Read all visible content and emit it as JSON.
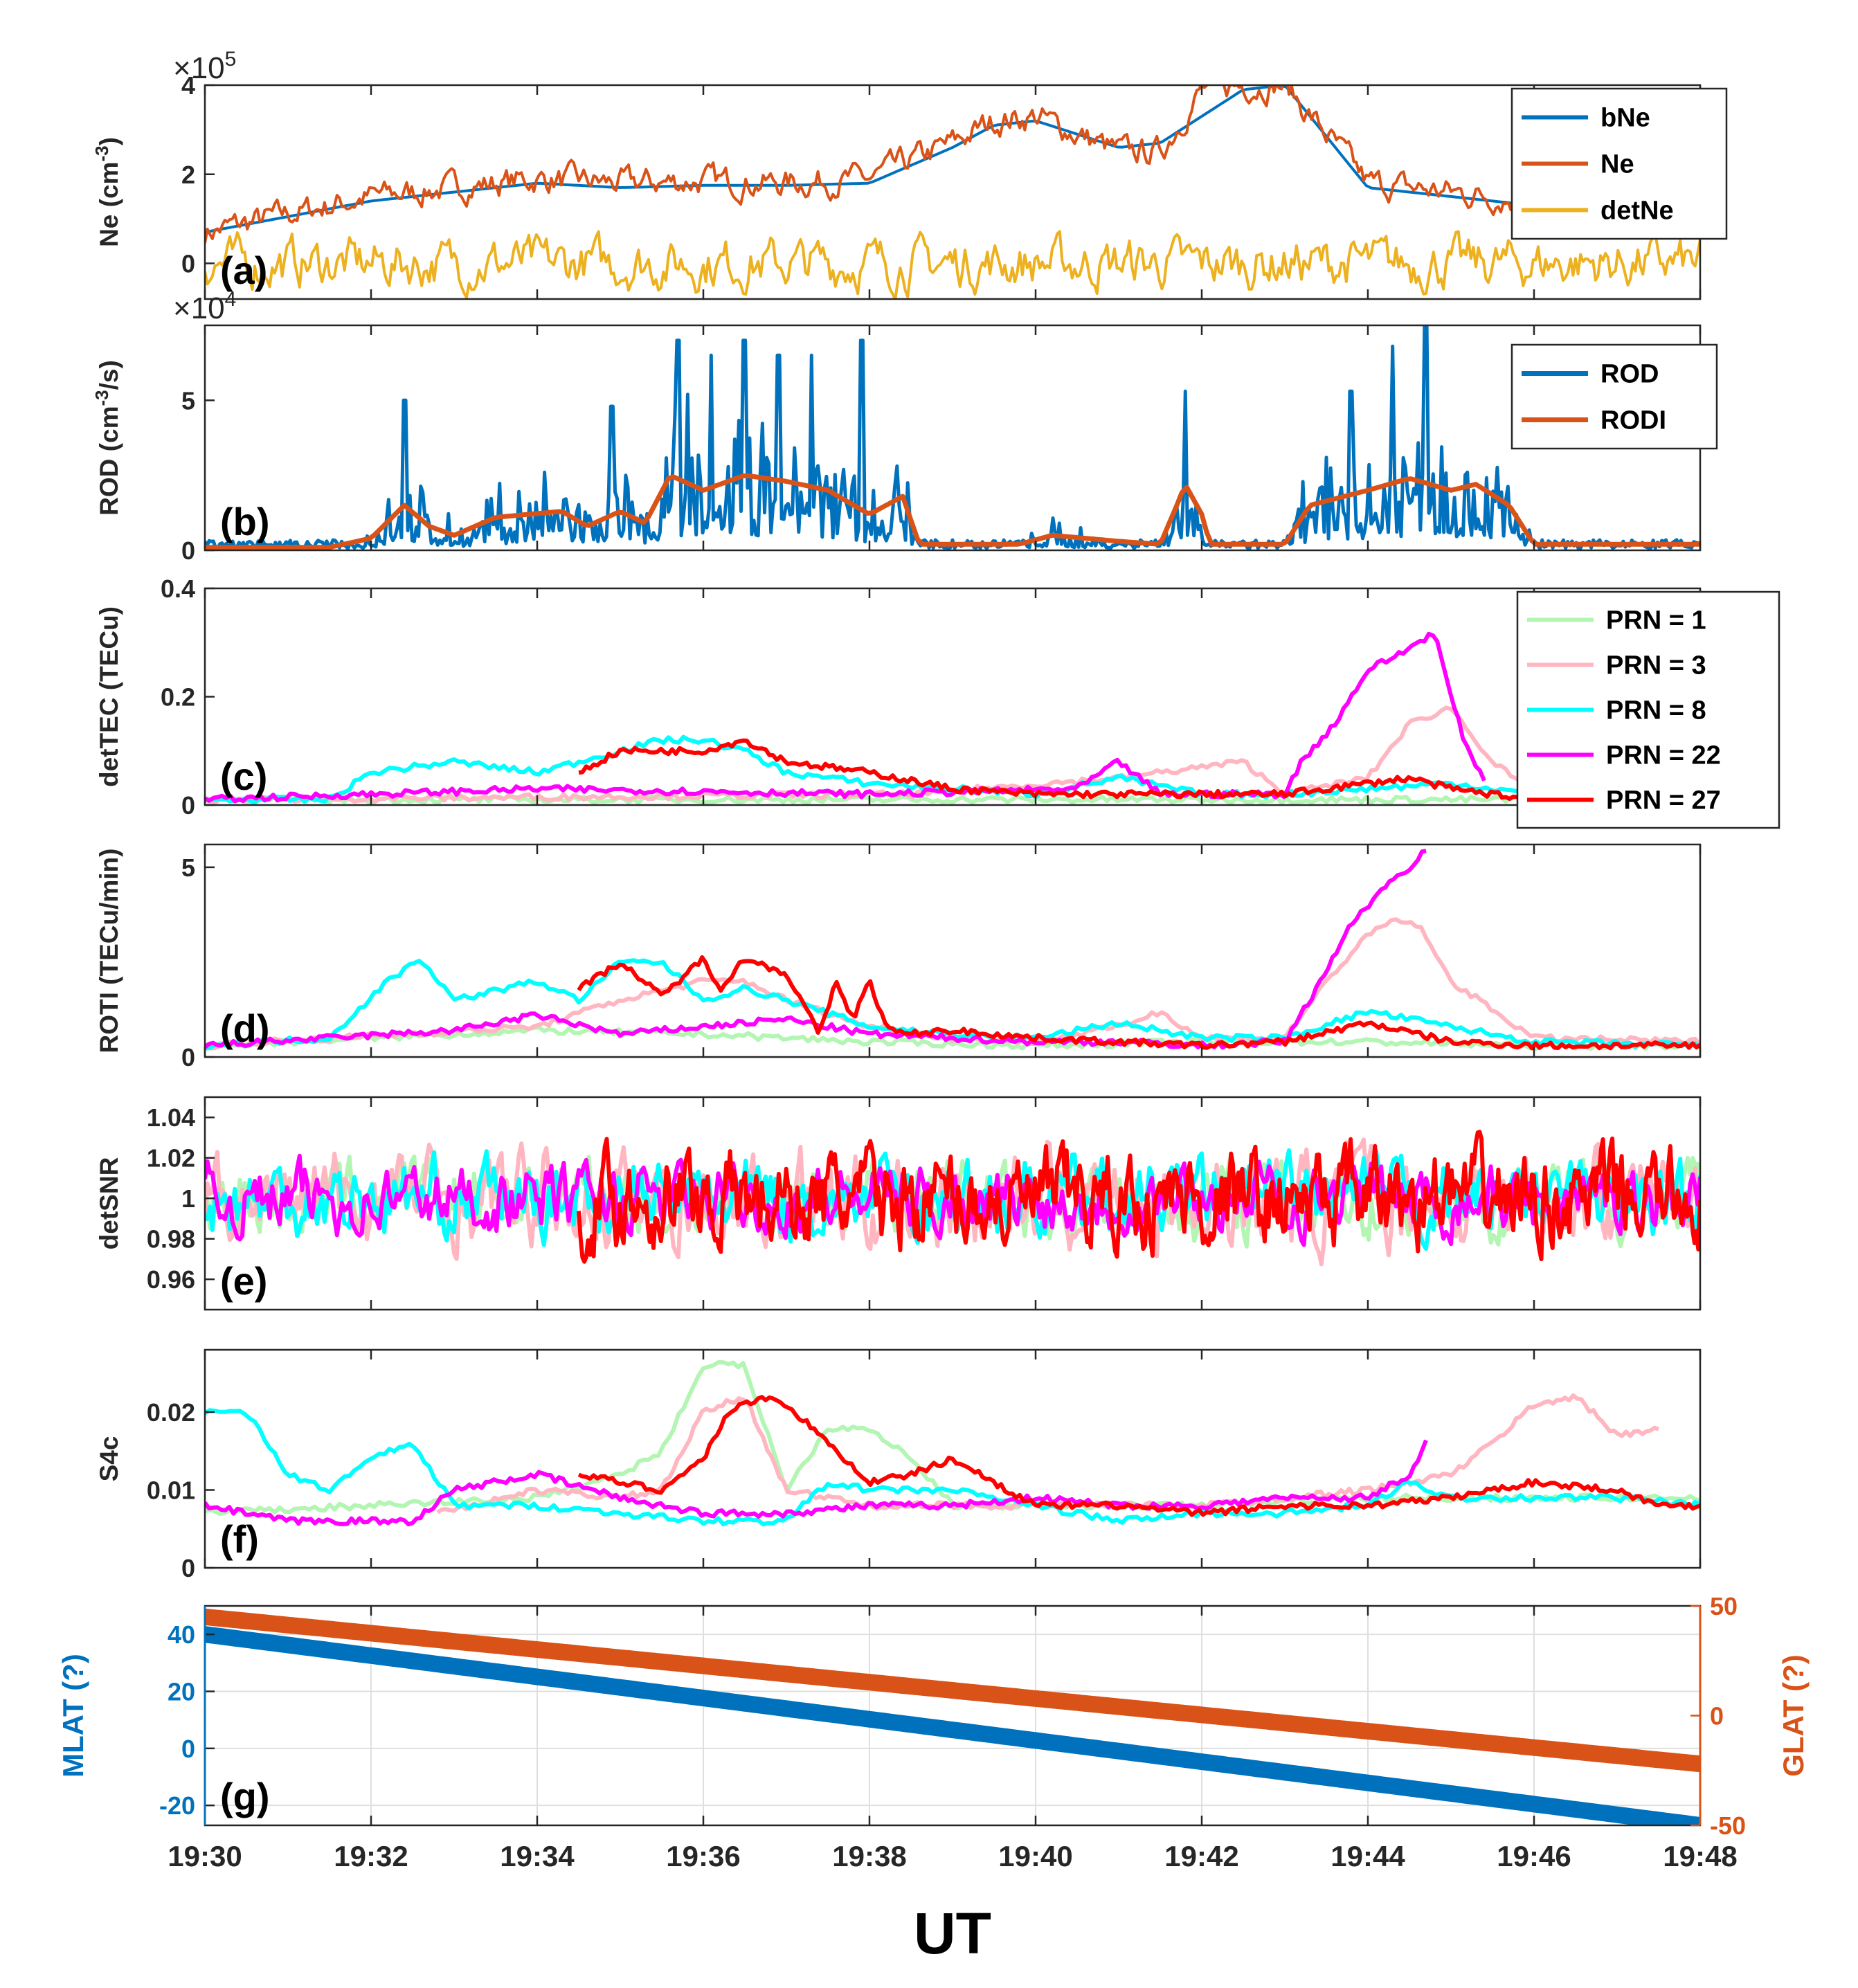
{
  "figure": {
    "xlabel": "UT",
    "xticks": [
      "19:30",
      "19:32",
      "19:34",
      "19:36",
      "19:38",
      "19:40",
      "19:42",
      "19:44",
      "19:46",
      "19:48"
    ],
    "colors": {
      "bNe": "#0072BD",
      "Ne": "#D95319",
      "detNe": "#EDB120",
      "ROD": "#0072BD",
      "RODI": "#D95319",
      "PRN1": "#B3F5B3",
      "PRN3": "#FFB6C1",
      "PRN8": "#00FFFF",
      "PRN22": "#FF00FF",
      "PRN27": "#FF0000",
      "MLAT": "#0072BD",
      "GLAT": "#D95319",
      "axis": "#262626",
      "grid": "#DFDFDF"
    }
  },
  "chart_data": [
    {
      "id": "a",
      "type": "line",
      "panel_label": "(a)",
      "ylabel": "Ne (cm-3)",
      "ylabel_main": "Ne (cm",
      "ylabel_sup": "-3",
      "ylabel_end": ")",
      "multiplier": "×10",
      "multiplier_exp": "5",
      "ylim": [
        -0.8,
        4.0
      ],
      "yticks": [
        "0",
        "2",
        "4"
      ],
      "ytick_values": [
        0,
        2,
        4
      ],
      "legend": [
        "bNe",
        "Ne",
        "detNe"
      ],
      "legend_position": "top-right",
      "series": [
        {
          "name": "bNe",
          "x": [
            0,
            2,
            4,
            5,
            6,
            7,
            8,
            9,
            9.5,
            10,
            11,
            11.5,
            12,
            12.5,
            13,
            14,
            15,
            16,
            17,
            18
          ],
          "y": [
            0.7,
            1.4,
            1.8,
            1.7,
            1.75,
            1.75,
            1.8,
            2.6,
            3.1,
            3.2,
            2.6,
            2.7,
            3.3,
            3.9,
            4.0,
            1.7,
            1.5,
            1.3,
            1.2,
            1.1
          ]
        },
        {
          "name": "Ne",
          "x": [
            0,
            2,
            4,
            5,
            6,
            7,
            8,
            9,
            9.5,
            10,
            11,
            11.5,
            12,
            12.5,
            13,
            14,
            15,
            16,
            17,
            18
          ],
          "y": [
            0.7,
            1.5,
            1.9,
            1.8,
            1.85,
            1.8,
            1.9,
            2.7,
            3.2,
            3.3,
            2.5,
            2.5,
            3.9,
            4.0,
            4.0,
            1.8,
            1.6,
            1.4,
            1.3,
            1.2
          ],
          "noise": 0.35
        },
        {
          "name": "detNe",
          "x": [
            0,
            18
          ],
          "y": [
            0,
            0
          ],
          "noise": 0.6
        }
      ]
    },
    {
      "id": "b",
      "type": "line",
      "panel_label": "(b)",
      "ylabel": "ROD (cm-3/s)",
      "ylabel_main": "ROD (cm",
      "ylabel_sup": "-3",
      "ylabel_end": "/s)",
      "multiplier": "×10",
      "multiplier_exp": "4",
      "ylim": [
        0,
        7.5
      ],
      "yticks": [
        "0",
        "5"
      ],
      "ytick_values": [
        0,
        5
      ],
      "legend": [
        "ROD",
        "RODI"
      ],
      "legend_position": "top-right",
      "series": [
        {
          "name": "ROD",
          "spikes": [
            [
              2.4,
              5.0
            ],
            [
              4.9,
              4.8
            ],
            [
              5.7,
              7.0
            ],
            [
              6.1,
              6.5
            ],
            [
              6.5,
              7.0
            ],
            [
              6.9,
              6.5
            ],
            [
              7.3,
              6.5
            ],
            [
              7.9,
              7.0
            ],
            [
              11.8,
              5.3
            ],
            [
              13.8,
              5.3
            ],
            [
              14.3,
              6.8
            ],
            [
              14.7,
              7.6
            ]
          ]
        },
        {
          "name": "RODI",
          "x": [
            0,
            1.5,
            2.0,
            2.4,
            2.7,
            3.0,
            3.5,
            4.3,
            4.6,
            5.0,
            5.3,
            5.6,
            6.0,
            6.5,
            7.0,
            7.5,
            8.0,
            8.4,
            8.6,
            9.0,
            9.8,
            10.2,
            11.0,
            11.5,
            11.7,
            11.8,
            12.0,
            12.1,
            13.0,
            13.3,
            14.0,
            14.5,
            15.0,
            15.3,
            15.7,
            16.0,
            18.0
          ],
          "y": [
            0.1,
            0.1,
            0.4,
            1.5,
            0.8,
            0.5,
            1.1,
            1.3,
            0.8,
            1.3,
            0.9,
            2.5,
            2.0,
            2.5,
            2.3,
            2.0,
            1.2,
            1.8,
            0.2,
            0.2,
            0.2,
            0.5,
            0.3,
            0.2,
            1.5,
            2.2,
            1.2,
            0.2,
            0.2,
            1.5,
            2.0,
            2.4,
            2.0,
            2.2,
            1.5,
            0.2,
            0.2
          ]
        }
      ]
    },
    {
      "id": "c",
      "type": "line",
      "panel_label": "(c)",
      "ylabel": "detTEC (TECu)",
      "ylim": [
        0,
        0.4
      ],
      "yticks": [
        "0",
        "0.2",
        "0.4"
      ],
      "ytick_values": [
        0,
        0.2,
        0.4
      ],
      "legend": [
        "PRN = 1",
        "PRN = 3",
        "PRN = 8",
        "PRN = 22",
        "PRN = 27"
      ],
      "legend_position": "top-right",
      "series": [
        {
          "name": "PRN = 1",
          "x": [
            0,
            18
          ],
          "y": [
            0.01,
            0.01
          ]
        },
        {
          "name": "PRN = 3",
          "x": [
            0,
            8.5,
            11,
            12.5,
            13,
            14,
            14.5,
            15,
            15.5,
            16,
            18
          ],
          "y": [
            0.01,
            0.02,
            0.05,
            0.08,
            0.02,
            0.05,
            0.15,
            0.18,
            0.08,
            0.02,
            0.02
          ]
        },
        {
          "name": "PRN = 8",
          "x": [
            0,
            1.5,
            2,
            3,
            4,
            4.5,
            5.5,
            6,
            6.5,
            7,
            8,
            9,
            10,
            11,
            12,
            13,
            14,
            15,
            16,
            18
          ],
          "y": [
            0.01,
            0.01,
            0.06,
            0.08,
            0.06,
            0.08,
            0.12,
            0.12,
            0.1,
            0.06,
            0.04,
            0.03,
            0.02,
            0.05,
            0.02,
            0.02,
            0.03,
            0.04,
            0.02,
            0.01
          ]
        },
        {
          "name": "PRN = 22",
          "x": [
            0,
            4,
            8,
            10.5,
            11,
            11.5,
            12,
            13,
            13.2,
            13.6,
            14,
            14.4,
            14.6,
            14.8,
            15.0,
            15.2,
            15.4
          ],
          "y": [
            0.01,
            0.03,
            0.02,
            0.03,
            0.08,
            0.02,
            0.02,
            0.02,
            0.08,
            0.15,
            0.25,
            0.28,
            0.3,
            0.32,
            0.2,
            0.1,
            0.05
          ]
        },
        {
          "name": "PRN = 27",
          "x": [
            4.5,
            5,
            5.5,
            6,
            6.5,
            7,
            8,
            9,
            10,
            12,
            13,
            14,
            14.5,
            15,
            16,
            18
          ],
          "y": [
            0.06,
            0.1,
            0.1,
            0.1,
            0.12,
            0.08,
            0.06,
            0.03,
            0.02,
            0.02,
            0.02,
            0.04,
            0.05,
            0.03,
            0.01,
            0.01
          ]
        }
      ]
    },
    {
      "id": "d",
      "type": "line",
      "panel_label": "(d)",
      "ylabel": "ROTI (TECu/min)",
      "ylim": [
        0,
        5.6
      ],
      "yticks": [
        "0",
        "5"
      ],
      "ytick_values": [
        0,
        5
      ],
      "series": [
        {
          "name": "PRN = 1",
          "x": [
            0,
            2,
            4,
            6,
            8,
            10,
            12,
            14,
            16,
            18
          ],
          "y": [
            0.3,
            0.5,
            0.7,
            0.6,
            0.4,
            0.3,
            0.4,
            0.4,
            0.3,
            0.3
          ]
        },
        {
          "name": "PRN = 3",
          "x": [
            0,
            4,
            5,
            6,
            6.5,
            7,
            8,
            9,
            10,
            11,
            11.5,
            12,
            13,
            13.5,
            14,
            14.3,
            14.6,
            15,
            16,
            18
          ],
          "y": [
            0.3,
            0.8,
            1.5,
            2.0,
            2.0,
            1.5,
            0.8,
            0.5,
            0.4,
            0.8,
            1.2,
            0.5,
            0.5,
            2.0,
            3.2,
            3.6,
            3.5,
            2.0,
            0.5,
            0.4
          ]
        },
        {
          "name": "PRN = 8",
          "x": [
            0,
            1.5,
            2.2,
            2.6,
            3,
            4,
            4.5,
            5,
            5.5,
            6,
            6.5,
            7,
            8,
            9,
            10,
            11,
            12,
            13,
            14,
            15,
            16,
            18
          ],
          "y": [
            0.3,
            0.5,
            2.0,
            2.6,
            1.5,
            2.0,
            1.5,
            2.5,
            2.5,
            1.5,
            1.8,
            1.5,
            0.8,
            0.6,
            0.5,
            0.9,
            0.5,
            0.5,
            1.2,
            0.8,
            0.4,
            0.3
          ]
        },
        {
          "name": "PRN = 22",
          "x": [
            0,
            3,
            4,
            5,
            6,
            7,
            8,
            9,
            10,
            11,
            12,
            13,
            13.3,
            13.8,
            14.2,
            14.5,
            14.7
          ],
          "y": [
            0.3,
            0.7,
            1.1,
            0.6,
            0.8,
            1.0,
            0.6,
            0.5,
            0.4,
            0.4,
            0.3,
            0.4,
            1.5,
            3.5,
            4.5,
            5.0,
            5.5
          ]
        },
        {
          "name": "PRN = 27",
          "x": [
            4.5,
            5,
            5.5,
            6,
            6.2,
            6.5,
            7,
            7.4,
            7.6,
            7.8,
            8,
            8.2,
            8.4,
            9,
            10,
            11,
            12,
            13,
            14,
            15,
            16,
            18
          ],
          "y": [
            1.8,
            2.5,
            1.6,
            2.6,
            1.8,
            2.6,
            2.2,
            0.6,
            2.0,
            1.0,
            2.0,
            0.8,
            0.6,
            0.7,
            0.5,
            0.4,
            0.3,
            0.4,
            0.9,
            0.4,
            0.3,
            0.3
          ]
        }
      ]
    },
    {
      "id": "e",
      "type": "line",
      "panel_label": "(e)",
      "ylabel": "detSNR",
      "ylim": [
        0.945,
        1.05
      ],
      "yticks": [
        "0.96",
        "0.98",
        "1",
        "1.02",
        "1.04"
      ],
      "ytick_values": [
        0.96,
        0.98,
        1.0,
        1.02,
        1.04
      ],
      "series": [
        {
          "name": "PRN = 1",
          "x": [
            0,
            18
          ],
          "y": [
            1.0,
            1.0
          ],
          "noise": 0.02
        },
        {
          "name": "PRN = 3",
          "x": [
            0,
            18
          ],
          "y": [
            1.0,
            1.0
          ],
          "noise": 0.025
        },
        {
          "name": "PRN = 8",
          "x": [
            0,
            18
          ],
          "y": [
            1.0,
            1.0
          ],
          "noise": 0.02
        },
        {
          "name": "PRN = 22",
          "x": [
            0,
            18
          ],
          "y": [
            1.0,
            1.0
          ],
          "noise": 0.018
        },
        {
          "name": "PRN = 27",
          "x": [
            4.5,
            18
          ],
          "y": [
            1.0,
            1.0
          ],
          "noise": 0.025
        }
      ]
    },
    {
      "id": "f",
      "type": "line",
      "panel_label": "(f)",
      "ylabel": "S4c",
      "ylim": [
        0,
        0.028
      ],
      "yticks": [
        "0",
        "0.01",
        "0.02"
      ],
      "ytick_values": [
        0,
        0.01,
        0.02
      ],
      "series": [
        {
          "name": "PRN = 1",
          "x": [
            0,
            2,
            4,
            5,
            5.5,
            6,
            6.5,
            7,
            7.5,
            8,
            8.5,
            9,
            10,
            12,
            14,
            16,
            18
          ],
          "y": [
            0.007,
            0.008,
            0.009,
            0.012,
            0.015,
            0.026,
            0.026,
            0.01,
            0.018,
            0.018,
            0.014,
            0.008,
            0.008,
            0.008,
            0.009,
            0.009,
            0.009
          ]
        },
        {
          "name": "PRN = 3",
          "x": [
            2.8,
            4,
            5,
            5.5,
            6,
            6.5,
            7,
            8,
            9,
            10,
            11,
            12,
            13,
            14,
            15,
            15.5,
            16,
            16.5,
            17,
            17.5
          ],
          "y": [
            0.007,
            0.01,
            0.009,
            0.01,
            0.02,
            0.022,
            0.01,
            0.008,
            0.008,
            0.008,
            0.008,
            0.008,
            0.009,
            0.01,
            0.012,
            0.016,
            0.021,
            0.022,
            0.017,
            0.018
          ]
        },
        {
          "name": "PRN = 8",
          "x": [
            0,
            0.5,
            1,
            1.5,
            2,
            2.5,
            3,
            4,
            5,
            6,
            7,
            7.5,
            8,
            9,
            10,
            11,
            12,
            13,
            14,
            14.5,
            15,
            16,
            17,
            18
          ],
          "y": [
            0.02,
            0.02,
            0.012,
            0.01,
            0.014,
            0.016,
            0.008,
            0.008,
            0.007,
            0.006,
            0.006,
            0.011,
            0.01,
            0.01,
            0.008,
            0.006,
            0.007,
            0.007,
            0.008,
            0.011,
            0.009,
            0.009,
            0.009,
            0.008
          ]
        },
        {
          "name": "PRN = 22",
          "x": [
            0,
            1,
            2,
            2.5,
            3,
            4,
            5,
            6,
            7,
            8,
            9,
            10,
            11,
            12,
            13,
            14,
            14.5,
            14.7
          ],
          "y": [
            0.008,
            0.006,
            0.006,
            0.006,
            0.01,
            0.012,
            0.009,
            0.007,
            0.007,
            0.008,
            0.008,
            0.009,
            0.008,
            0.008,
            0.009,
            0.009,
            0.012,
            0.016
          ]
        },
        {
          "name": "PRN = 27",
          "x": [
            4.5,
            5,
            5.5,
            6,
            6.3,
            6.7,
            7,
            7.5,
            8,
            8.5,
            9,
            10,
            11,
            12,
            13,
            14,
            15,
            16,
            17,
            17.5,
            18
          ],
          "y": [
            0.012,
            0.011,
            0.01,
            0.014,
            0.02,
            0.022,
            0.021,
            0.016,
            0.011,
            0.012,
            0.014,
            0.008,
            0.008,
            0.007,
            0.008,
            0.008,
            0.009,
            0.011,
            0.01,
            0.008,
            0.008
          ]
        }
      ]
    },
    {
      "id": "g",
      "type": "line",
      "panel_label": "(g)",
      "ylabel": "MLAT (?)",
      "ylabel_right": "GLAT (?)",
      "ylim": [
        -27,
        50
      ],
      "yticks": [
        "-20",
        "0",
        "20",
        "40"
      ],
      "ytick_values": [
        -20,
        0,
        20,
        40
      ],
      "ylim_right": [
        -50,
        50
      ],
      "yticks_right": [
        "-50",
        "0",
        "50"
      ],
      "ytick_values_right": [
        -50,
        0,
        50
      ],
      "series": [
        {
          "name": "MLAT",
          "x": [
            0,
            18
          ],
          "y": [
            40,
            -27
          ],
          "axis": "left"
        },
        {
          "name": "GLAT",
          "x": [
            0,
            18
          ],
          "y": [
            45,
            -22
          ],
          "axis": "right"
        }
      ]
    }
  ]
}
